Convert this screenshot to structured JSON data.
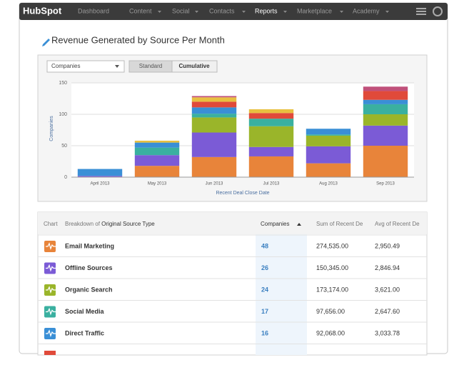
{
  "nav": {
    "logo": "HubSpot",
    "items": [
      "Dashboard",
      "Content",
      "Social",
      "Contacts",
      "Reports",
      "Marketplace",
      "Academy"
    ]
  },
  "page_title": "Revenue Generated by Source Per Month",
  "controls": {
    "dropdown": "Companies",
    "buttons": [
      "Standard",
      "Cumulative"
    ]
  },
  "chart_data": {
    "type": "stacked-bar",
    "y_label": "Companies",
    "x_label": "Recent Deal Close Date",
    "categories": [
      "April 2013",
      "May 2013",
      "Jun 2013",
      "Jul 2013",
      "Aug 2013",
      "Sep 2013"
    ],
    "ylim": [
      0,
      150
    ],
    "yticks": [
      0,
      50,
      100,
      150
    ],
    "grid": true,
    "series": [
      {
        "name": "Email Marketing",
        "color": "#e8843a",
        "values": [
          0,
          18,
          32,
          33,
          22,
          50
        ]
      },
      {
        "name": "Offline Sources",
        "color": "#7b5bd6",
        "values": [
          2,
          17,
          39,
          15,
          27,
          32
        ]
      },
      {
        "name": "Organic Search",
        "color": "#9ab52a",
        "values": [
          0,
          0,
          24,
          33,
          17,
          18
        ]
      },
      {
        "name": "Social Media",
        "color": "#3ab0a0",
        "values": [
          0,
          12,
          6,
          12,
          2,
          16
        ]
      },
      {
        "name": "Direct Traffic",
        "color": "#3a8fd6",
        "values": [
          11,
          8,
          10,
          0,
          9,
          7
        ]
      },
      {
        "color": "#e04a3a",
        "values": [
          0,
          0,
          9,
          9,
          0,
          14
        ]
      },
      {
        "color": "#e8c040",
        "values": [
          0,
          3,
          7,
          6,
          0,
          0
        ]
      },
      {
        "color": "#c0507a",
        "values": [
          0,
          0,
          2,
          0,
          0,
          7
        ]
      }
    ]
  },
  "table": {
    "headers": [
      "Chart",
      "Breakdown of",
      "Original Source Type",
      "Companies",
      "Sum of Recent De",
      "Avg of Recent De"
    ],
    "rows": [
      [
        "Email Marketing",
        "48",
        "274,535.00",
        "2,950.49"
      ],
      [
        "Offline Sources",
        "26",
        "150,345.00",
        "2,846.94"
      ],
      [
        "Organic Search",
        "24",
        "173,174.00",
        "3,621.00"
      ],
      [
        "Social Media",
        "17",
        "97,656.00",
        "2,647.60"
      ],
      [
        "Direct Traffic",
        "16",
        "92,068.00",
        "3,033.78"
      ]
    ]
  }
}
